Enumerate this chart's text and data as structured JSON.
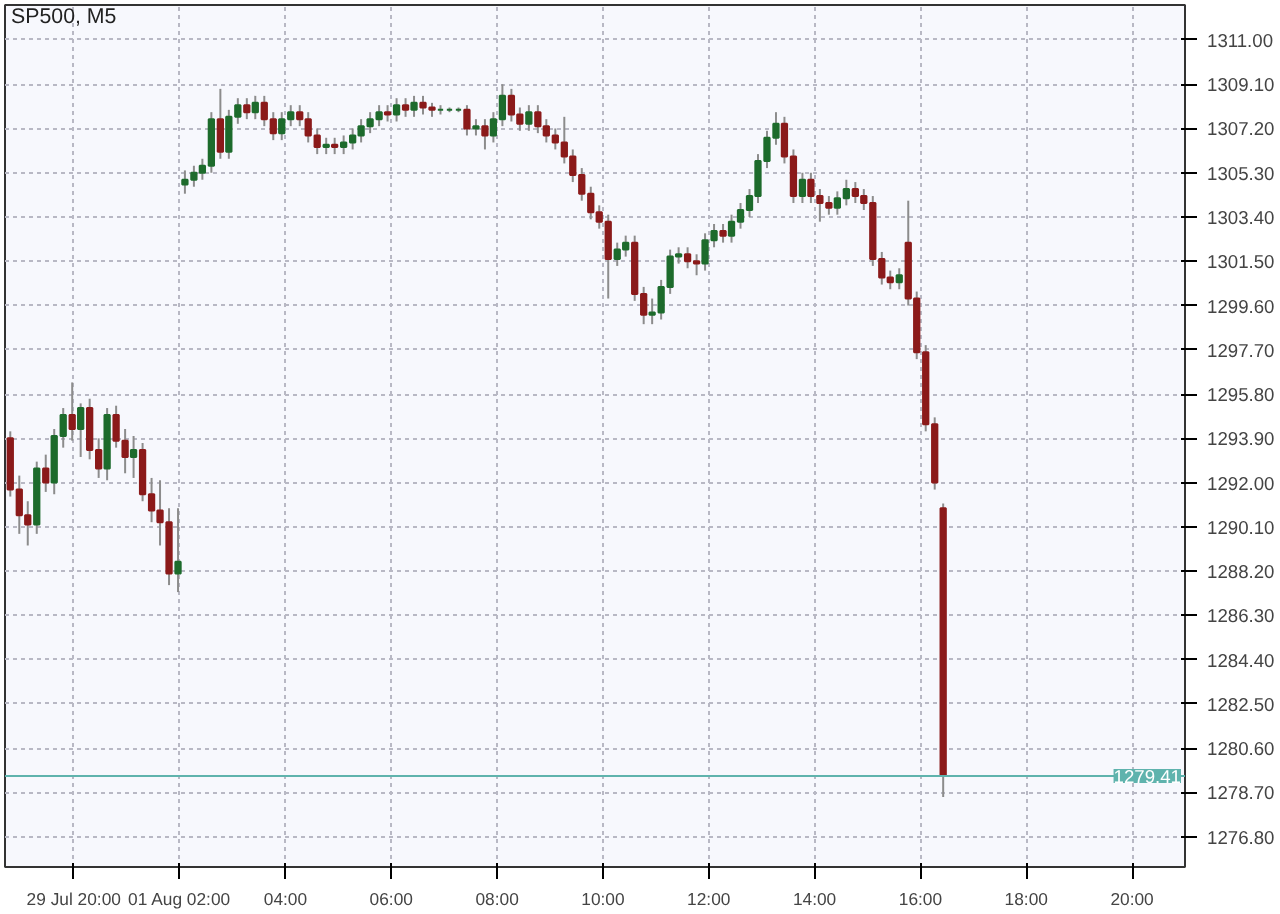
{
  "chart_data": {
    "type": "candlestick",
    "title": "SP500, M5",
    "x": [
      -1.2,
      -1.03,
      -0.87,
      -0.7,
      -0.53,
      -0.37,
      -0.2,
      -0.03,
      0.13,
      0.3,
      0.47,
      0.63,
      0.8,
      0.97,
      1.13,
      1.3,
      1.47,
      1.63,
      1.8,
      1.97,
      2.1,
      2.27,
      2.43,
      2.6,
      2.77,
      2.93,
      3.1,
      3.27,
      3.43,
      3.6,
      3.77,
      3.93,
      4.1,
      4.27,
      4.43,
      4.6,
      4.77,
      4.93,
      5.1,
      5.27,
      5.43,
      5.6,
      5.77,
      5.93,
      6.1,
      6.27,
      6.43,
      6.6,
      6.77,
      6.93,
      7.1,
      7.27,
      7.43,
      7.6,
      7.77,
      7.93,
      8.1,
      8.27,
      8.43,
      8.6,
      8.77,
      8.93,
      9.1,
      9.27,
      9.43,
      9.6,
      9.77,
      9.93,
      10.1,
      10.27,
      10.43,
      10.6,
      10.77,
      10.93,
      11.1,
      11.27,
      11.43,
      11.6,
      11.77,
      11.93,
      12.1,
      12.27,
      12.43,
      12.6,
      12.77,
      12.93,
      13.1,
      13.27,
      13.43,
      13.6,
      13.77,
      13.93,
      14.1,
      14.27,
      14.43,
      14.6,
      14.77,
      14.93,
      15.1,
      15.27,
      15.43,
      15.6,
      15.77,
      15.93,
      16.1,
      16.27,
      16.43
    ],
    "ohlc": [
      [
        1293.9,
        1294.2,
        1291.4,
        1291.7
      ],
      [
        1291.7,
        1292.3,
        1289.8,
        1290.6
      ],
      [
        1290.6,
        1291.2,
        1289.3,
        1290.2
      ],
      [
        1290.2,
        1292.9,
        1289.8,
        1292.6
      ],
      [
        1292.6,
        1293.2,
        1291.6,
        1292.0
      ],
      [
        1292.0,
        1294.3,
        1291.5,
        1294.0
      ],
      [
        1294.0,
        1295.2,
        1293.5,
        1294.9
      ],
      [
        1294.9,
        1296.3,
        1293.8,
        1294.3
      ],
      [
        1294.3,
        1295.4,
        1293.1,
        1295.2
      ],
      [
        1295.2,
        1295.6,
        1293.0,
        1293.4
      ],
      [
        1293.4,
        1293.9,
        1292.2,
        1292.6
      ],
      [
        1292.6,
        1295.2,
        1292.1,
        1294.9
      ],
      [
        1294.9,
        1295.3,
        1293.5,
        1293.8
      ],
      [
        1293.8,
        1294.3,
        1292.4,
        1293.1
      ],
      [
        1293.1,
        1294.0,
        1292.2,
        1293.4
      ],
      [
        1293.4,
        1293.7,
        1291.2,
        1291.5
      ],
      [
        1291.5,
        1292.2,
        1290.3,
        1290.8
      ],
      [
        1290.8,
        1292.1,
        1289.3,
        1290.3
      ],
      [
        1290.3,
        1290.9,
        1287.6,
        1288.1
      ],
      [
        1288.1,
        1290.9,
        1287.3,
        1288.6
      ],
      [
        1304.8,
        1305.4,
        1304.4,
        1305.0
      ],
      [
        1305.0,
        1305.6,
        1304.7,
        1305.3
      ],
      [
        1305.3,
        1305.9,
        1305.0,
        1305.6
      ],
      [
        1305.6,
        1307.9,
        1305.3,
        1307.6
      ],
      [
        1307.6,
        1308.9,
        1305.9,
        1306.2
      ],
      [
        1306.2,
        1308.0,
        1305.9,
        1307.7
      ],
      [
        1307.7,
        1308.5,
        1307.4,
        1308.2
      ],
      [
        1308.2,
        1308.5,
        1307.6,
        1307.9
      ],
      [
        1307.9,
        1308.6,
        1307.6,
        1308.3
      ],
      [
        1308.3,
        1308.6,
        1307.3,
        1307.6
      ],
      [
        1307.6,
        1307.9,
        1306.7,
        1307.0
      ],
      [
        1307.0,
        1307.9,
        1306.7,
        1307.6
      ],
      [
        1307.6,
        1308.2,
        1307.3,
        1307.9
      ],
      [
        1307.9,
        1308.2,
        1307.3,
        1307.6
      ],
      [
        1307.6,
        1307.9,
        1306.6,
        1306.9
      ],
      [
        1306.9,
        1307.2,
        1306.1,
        1306.4
      ],
      [
        1306.4,
        1306.8,
        1306.1,
        1306.5
      ],
      [
        1306.5,
        1306.8,
        1306.1,
        1306.4
      ],
      [
        1306.4,
        1306.9,
        1306.1,
        1306.6
      ],
      [
        1306.6,
        1307.2,
        1306.3,
        1306.9
      ],
      [
        1306.9,
        1307.6,
        1306.6,
        1307.3
      ],
      [
        1307.3,
        1307.9,
        1307.0,
        1307.6
      ],
      [
        1307.6,
        1308.2,
        1307.3,
        1307.9
      ],
      [
        1307.9,
        1308.2,
        1307.5,
        1307.8
      ],
      [
        1307.8,
        1308.5,
        1307.5,
        1308.2
      ],
      [
        1308.2,
        1308.5,
        1307.7,
        1308.0
      ],
      [
        1308.0,
        1308.6,
        1307.7,
        1308.3
      ],
      [
        1308.3,
        1308.6,
        1307.8,
        1308.1
      ],
      [
        1308.1,
        1308.3,
        1307.7,
        1308.0
      ],
      [
        1308.0,
        1308.2,
        1307.8,
        1308.0
      ],
      [
        1308.0,
        1308.1,
        1307.9,
        1308.0
      ],
      [
        1308.0,
        1308.1,
        1307.9,
        1308.0
      ],
      [
        1308.0,
        1308.2,
        1306.9,
        1307.2
      ],
      [
        1307.2,
        1307.6,
        1306.9,
        1307.3
      ],
      [
        1307.3,
        1307.6,
        1306.3,
        1306.9
      ],
      [
        1306.9,
        1307.9,
        1306.6,
        1307.6
      ],
      [
        1307.6,
        1309.1,
        1307.3,
        1308.6
      ],
      [
        1308.6,
        1308.9,
        1307.5,
        1307.8
      ],
      [
        1307.8,
        1308.1,
        1307.1,
        1307.4
      ],
      [
        1307.4,
        1308.2,
        1307.1,
        1307.9
      ],
      [
        1307.9,
        1308.2,
        1307.0,
        1307.3
      ],
      [
        1307.3,
        1307.6,
        1306.6,
        1306.9
      ],
      [
        1306.9,
        1307.2,
        1306.3,
        1306.6
      ],
      [
        1306.6,
        1307.7,
        1305.7,
        1306.0
      ],
      [
        1306.0,
        1306.3,
        1304.9,
        1305.2
      ],
      [
        1305.2,
        1305.5,
        1304.1,
        1304.4
      ],
      [
        1304.4,
        1304.7,
        1303.3,
        1303.6
      ],
      [
        1303.6,
        1303.9,
        1302.9,
        1303.2
      ],
      [
        1303.2,
        1303.5,
        1299.9,
        1301.6
      ],
      [
        1301.6,
        1302.3,
        1301.3,
        1302.0
      ],
      [
        1302.0,
        1302.6,
        1301.7,
        1302.3
      ],
      [
        1302.3,
        1302.6,
        1299.8,
        1300.1
      ],
      [
        1300.1,
        1300.4,
        1298.8,
        1299.2
      ],
      [
        1299.2,
        1299.9,
        1298.8,
        1299.3
      ],
      [
        1299.3,
        1300.7,
        1299.0,
        1300.4
      ],
      [
        1300.4,
        1302.0,
        1300.1,
        1301.7
      ],
      [
        1301.7,
        1302.1,
        1301.4,
        1301.8
      ],
      [
        1301.8,
        1302.1,
        1301.2,
        1301.5
      ],
      [
        1301.5,
        1301.8,
        1300.9,
        1301.4
      ],
      [
        1301.4,
        1302.7,
        1301.1,
        1302.4
      ],
      [
        1302.4,
        1303.1,
        1302.1,
        1302.8
      ],
      [
        1302.8,
        1303.1,
        1302.3,
        1302.6
      ],
      [
        1302.6,
        1303.5,
        1302.3,
        1303.2
      ],
      [
        1303.2,
        1304.0,
        1302.9,
        1303.7
      ],
      [
        1303.7,
        1304.6,
        1303.4,
        1304.3
      ],
      [
        1304.3,
        1306.1,
        1304.0,
        1305.8
      ],
      [
        1305.8,
        1307.1,
        1305.5,
        1306.8
      ],
      [
        1306.8,
        1307.9,
        1306.5,
        1307.4
      ],
      [
        1307.4,
        1307.7,
        1305.7,
        1306.0
      ],
      [
        1306.0,
        1306.3,
        1304.0,
        1304.3
      ],
      [
        1304.3,
        1305.3,
        1304.0,
        1305.0
      ],
      [
        1305.0,
        1305.3,
        1304.0,
        1304.3
      ],
      [
        1304.3,
        1304.6,
        1303.2,
        1304.0
      ],
      [
        1304.0,
        1304.3,
        1303.5,
        1303.8
      ],
      [
        1303.8,
        1304.5,
        1303.5,
        1304.2
      ],
      [
        1304.2,
        1305.0,
        1303.9,
        1304.6
      ],
      [
        1304.6,
        1304.9,
        1304.0,
        1304.3
      ],
      [
        1304.3,
        1304.6,
        1303.7,
        1304.0
      ],
      [
        1304.0,
        1304.3,
        1301.3,
        1301.6
      ],
      [
        1301.6,
        1301.9,
        1300.5,
        1300.8
      ],
      [
        1300.8,
        1301.1,
        1300.3,
        1300.6
      ],
      [
        1300.6,
        1301.2,
        1300.3,
        1300.9
      ],
      [
        1302.3,
        1304.1,
        1299.6,
        1299.9
      ],
      [
        1299.9,
        1300.2,
        1297.3,
        1297.6
      ],
      [
        1297.6,
        1297.9,
        1294.2,
        1294.5
      ],
      [
        1294.5,
        1294.8,
        1291.7,
        1292.0
      ],
      [
        1290.9,
        1291.1,
        1278.5,
        1279.41
      ]
    ],
    "colors": [
      "#8b1a1a",
      "#8b1a1a",
      "#8b1a1a",
      "#1d6b2c",
      "#8b1a1a",
      "#1d6b2c",
      "#1d6b2c",
      "#8b1a1a",
      "#1d6b2c",
      "#8b1a1a",
      "#8b1a1a",
      "#1d6b2c",
      "#8b1a1a",
      "#8b1a1a",
      "#1d6b2c",
      "#8b1a1a",
      "#8b1a1a",
      "#8b1a1a",
      "#8b1a1a",
      "#1d6b2c",
      "#1d6b2c",
      "#1d6b2c",
      "#1d6b2c",
      "#1d6b2c",
      "#8b1a1a",
      "#1d6b2c",
      "#1d6b2c",
      "#8b1a1a",
      "#1d6b2c",
      "#8b1a1a",
      "#8b1a1a",
      "#1d6b2c",
      "#1d6b2c",
      "#8b1a1a",
      "#8b1a1a",
      "#8b1a1a",
      "#1d6b2c",
      "#8b1a1a",
      "#1d6b2c",
      "#1d6b2c",
      "#1d6b2c",
      "#1d6b2c",
      "#1d6b2c",
      "#8b1a1a",
      "#1d6b2c",
      "#8b1a1a",
      "#1d6b2c",
      "#8b1a1a",
      "#8b1a1a",
      "#1d6b2c",
      "#1d6b2c",
      "#1d6b2c",
      "#8b1a1a",
      "#1d6b2c",
      "#8b1a1a",
      "#1d6b2c",
      "#1d6b2c",
      "#8b1a1a",
      "#8b1a1a",
      "#1d6b2c",
      "#8b1a1a",
      "#8b1a1a",
      "#8b1a1a",
      "#8b1a1a",
      "#8b1a1a",
      "#8b1a1a",
      "#8b1a1a",
      "#8b1a1a",
      "#8b1a1a",
      "#1d6b2c",
      "#1d6b2c",
      "#8b1a1a",
      "#8b1a1a",
      "#1d6b2c",
      "#1d6b2c",
      "#1d6b2c",
      "#1d6b2c",
      "#8b1a1a",
      "#8b1a1a",
      "#1d6b2c",
      "#1d6b2c",
      "#8b1a1a",
      "#1d6b2c",
      "#1d6b2c",
      "#1d6b2c",
      "#1d6b2c",
      "#1d6b2c",
      "#1d6b2c",
      "#8b1a1a",
      "#8b1a1a",
      "#1d6b2c",
      "#8b1a1a",
      "#8b1a1a",
      "#8b1a1a",
      "#1d6b2c",
      "#1d6b2c",
      "#8b1a1a",
      "#8b1a1a",
      "#8b1a1a",
      "#8b1a1a",
      "#8b1a1a",
      "#1d6b2c",
      "#8b1a1a",
      "#8b1a1a",
      "#8b1a1a",
      "#8b1a1a",
      "#8b1a1a"
    ],
    "xlim": [
      -1.3,
      21.0
    ],
    "xticks": [
      {
        "value": 0,
        "label": "29 Jul 20:00"
      },
      {
        "value": 2,
        "label": "01 Aug 02:00"
      },
      {
        "value": 4,
        "label": "04:00"
      },
      {
        "value": 6,
        "label": "06:00"
      },
      {
        "value": 8,
        "label": "08:00"
      },
      {
        "value": 10,
        "label": "10:00"
      },
      {
        "value": 12,
        "label": "12:00"
      },
      {
        "value": 14,
        "label": "14:00"
      },
      {
        "value": 16,
        "label": "16:00"
      },
      {
        "value": 18,
        "label": "18:00"
      },
      {
        "value": 20,
        "label": "20:00"
      }
    ],
    "ylim": [
      1275.5,
      1312.5
    ],
    "yticks": [
      {
        "value": 1276.8,
        "label": "1276.80"
      },
      {
        "value": 1278.7,
        "label": "1278.70"
      },
      {
        "value": 1280.6,
        "label": "1280.60"
      },
      {
        "value": 1282.5,
        "label": "1282.50"
      },
      {
        "value": 1284.4,
        "label": "1284.40"
      },
      {
        "value": 1286.3,
        "label": "1286.30"
      },
      {
        "value": 1288.2,
        "label": "1288.20"
      },
      {
        "value": 1290.1,
        "label": "1290.10"
      },
      {
        "value": 1292.0,
        "label": "1292.00"
      },
      {
        "value": 1293.9,
        "label": "1293.90"
      },
      {
        "value": 1295.8,
        "label": "1295.80"
      },
      {
        "value": 1297.7,
        "label": "1297.70"
      },
      {
        "value": 1299.6,
        "label": "1299.60"
      },
      {
        "value": 1301.5,
        "label": "1301.50"
      },
      {
        "value": 1303.4,
        "label": "1303.40"
      },
      {
        "value": 1305.3,
        "label": "1305.30"
      },
      {
        "value": 1307.2,
        "label": "1307.20"
      },
      {
        "value": 1309.1,
        "label": "1309.10"
      },
      {
        "value": 1311.0,
        "label": "1311.00"
      }
    ],
    "ref_lines": [
      {
        "axis": "y",
        "value": 1279.41,
        "label": "1279.41",
        "color": "#5fb3ad"
      }
    ],
    "grid": true
  }
}
